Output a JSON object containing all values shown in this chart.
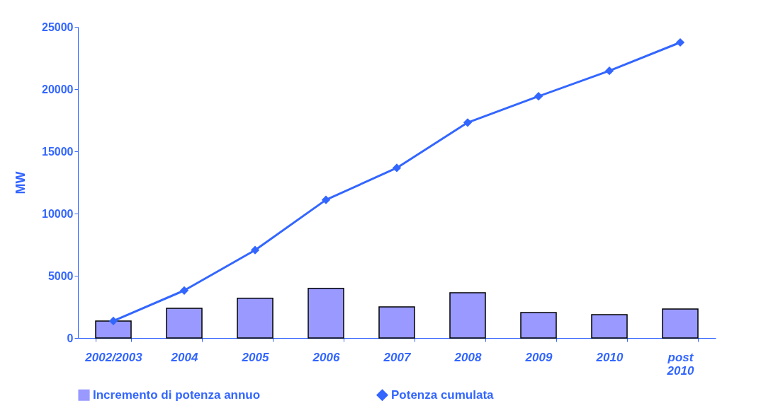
{
  "chart_data": {
    "type": "bar",
    "ylabel": "MW",
    "categories": [
      "2002/2003",
      "2004",
      "2005",
      "2006",
      "2007",
      "2008",
      "2009",
      "2010",
      "post 2010"
    ],
    "series": [
      {
        "name": "Incremento di potenza annuo",
        "color": "#9999ff",
        "values": [
          1370,
          2390,
          3190,
          3990,
          2500,
          3640,
          2050,
          1880,
          2330
        ]
      },
      {
        "name": "Potenza cumulata",
        "type": "line",
        "color": "#3366ff",
        "marker": "diamond",
        "values": [
          1370,
          3820,
          7060,
          11100,
          13670,
          17310,
          19420,
          21470,
          23750
        ]
      }
    ],
    "ylim": [
      0,
      25000
    ],
    "yticks": [
      0,
      5000,
      10000,
      15000,
      20000,
      25000
    ],
    "grid": false,
    "legend": "bottom"
  }
}
